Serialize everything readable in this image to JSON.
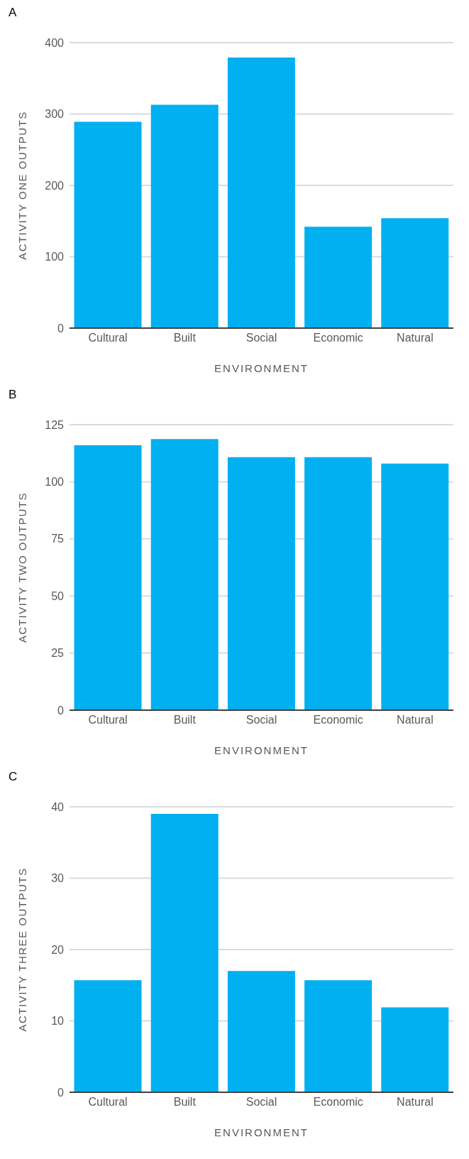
{
  "chart_data": [
    {
      "type": "bar",
      "title": "A",
      "xlabel": "ENVIRONMENT",
      "ylabel": "ACTIVITY ONE OUTPUTS",
      "categories": [
        "Cultural",
        "Built",
        "Social",
        "Economic",
        "Natural"
      ],
      "values": [
        289,
        313,
        379,
        142,
        154
      ],
      "color": "#00b0f0",
      "ylim": [
        0,
        400
      ],
      "yticks": [
        0,
        100,
        200,
        300,
        400
      ],
      "grid": "y"
    },
    {
      "type": "bar",
      "title": "B",
      "xlabel": "ENVIRONMENT",
      "ylabel": "ACTIVITY TWO OUTPUTS",
      "categories": [
        "Cultural",
        "Built",
        "Social",
        "Economic",
        "Natural"
      ],
      "values": [
        116,
        118.7,
        110.8,
        110.8,
        108
      ],
      "color": "#00b0f0",
      "ylim": [
        0,
        125
      ],
      "yticks": [
        0,
        25,
        50,
        75,
        100,
        125
      ],
      "grid": "y"
    },
    {
      "type": "bar",
      "title": "C",
      "xlabel": "ENVIRONMENT",
      "ylabel": "ACTIVITY THREE OUTPUTS",
      "categories": [
        "Cultural",
        "Built",
        "Social",
        "Economic",
        "Natural"
      ],
      "values": [
        15.7,
        39,
        17,
        15.7,
        11.9
      ],
      "color": "#00b0f0",
      "ylim": [
        0,
        40
      ],
      "yticks": [
        0,
        10,
        20,
        30,
        40
      ],
      "grid": "y"
    }
  ]
}
